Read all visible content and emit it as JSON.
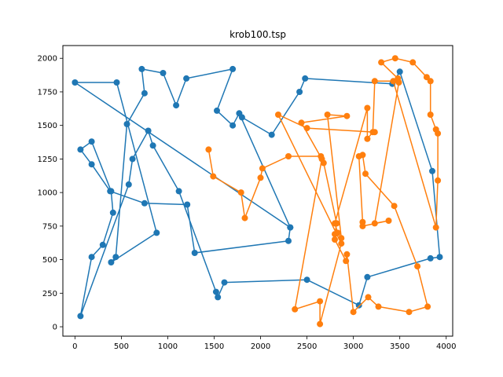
{
  "chart_data": {
    "type": "line",
    "title": "krob100.tsp",
    "xlabel": "",
    "ylabel": "",
    "xlim": [
      -130,
      4070
    ],
    "ylim": [
      -70,
      2095
    ],
    "grid": false,
    "x_ticks": [
      0,
      500,
      1000,
      1500,
      2000,
      2500,
      3000,
      3500,
      4000
    ],
    "y_ticks": [
      0,
      250,
      500,
      750,
      1000,
      1250,
      1500,
      1750,
      2000
    ],
    "x_tick_labels": [
      "0",
      "500",
      "1000",
      "1500",
      "2000",
      "2500",
      "3000",
      "3500",
      "4000"
    ],
    "y_tick_labels": [
      "0",
      "250",
      "500",
      "750",
      "1000",
      "1250",
      "1500",
      "1750",
      "2000"
    ],
    "series": [
      {
        "color": "#1f77b4",
        "points": [
          [
            2320,
            740
          ],
          [
            1770,
            1590
          ],
          [
            1700,
            1500
          ],
          [
            1530,
            1610
          ],
          [
            1700,
            1920
          ],
          [
            1200,
            1850
          ],
          [
            1090,
            1650
          ],
          [
            950,
            1890
          ],
          [
            720,
            1920
          ],
          [
            750,
            1740
          ],
          [
            560,
            1510
          ],
          [
            440,
            520
          ],
          [
            390,
            480
          ],
          [
            880,
            700
          ],
          [
            450,
            1820
          ],
          [
            0,
            1820
          ],
          [
            2320,
            740
          ],
          [
            2300,
            640
          ],
          [
            1290,
            550
          ],
          [
            1210,
            910
          ],
          [
            750,
            920
          ],
          [
            380,
            1010
          ],
          [
            180,
            1210
          ],
          [
            60,
            1320
          ],
          [
            180,
            1380
          ],
          [
            390,
            1010
          ],
          [
            410,
            850
          ],
          [
            300,
            610
          ],
          [
            180,
            520
          ],
          [
            60,
            80
          ],
          [
            580,
            1060
          ],
          [
            620,
            1250
          ],
          [
            790,
            1460
          ],
          [
            840,
            1350
          ],
          [
            1120,
            1010
          ],
          [
            1520,
            260
          ],
          [
            1540,
            220
          ],
          [
            1610,
            330
          ],
          [
            2500,
            350
          ],
          [
            3060,
            160
          ],
          [
            3150,
            370
          ],
          [
            3830,
            510
          ],
          [
            3930,
            520
          ],
          [
            3850,
            1160
          ],
          [
            3500,
            1900
          ],
          [
            3420,
            1810
          ],
          [
            2480,
            1850
          ],
          [
            2420,
            1750
          ],
          [
            2120,
            1430
          ],
          [
            1800,
            1560
          ]
        ]
      },
      {
        "color": "#ff7f0e",
        "points": [
          [
            1440,
            1320
          ],
          [
            1490,
            1120
          ],
          [
            1790,
            1000
          ],
          [
            1830,
            810
          ],
          [
            2000,
            1110
          ],
          [
            2020,
            1180
          ],
          [
            2300,
            1270
          ],
          [
            2650,
            1270
          ],
          [
            2680,
            1220
          ],
          [
            2820,
            770
          ],
          [
            2800,
            690
          ],
          [
            2800,
            650
          ],
          [
            2920,
            490
          ],
          [
            2930,
            540
          ],
          [
            3000,
            110
          ],
          [
            3160,
            220
          ],
          [
            3270,
            150
          ],
          [
            3600,
            110
          ],
          [
            3800,
            150
          ],
          [
            3690,
            450
          ],
          [
            3440,
            900
          ],
          [
            3130,
            1140
          ],
          [
            3100,
            1280
          ],
          [
            3060,
            1270
          ],
          [
            3100,
            780
          ],
          [
            3100,
            750
          ],
          [
            3380,
            790
          ],
          [
            3230,
            770
          ],
          [
            3490,
            1820
          ],
          [
            3480,
            1850
          ],
          [
            3300,
            1970
          ],
          [
            3450,
            2000
          ],
          [
            3640,
            1970
          ],
          [
            3790,
            1860
          ],
          [
            3830,
            1830
          ],
          [
            3830,
            1580
          ],
          [
            3890,
            1470
          ],
          [
            3910,
            1440
          ],
          [
            3910,
            1090
          ],
          [
            3890,
            740
          ],
          [
            3430,
            1830
          ],
          [
            3230,
            1830
          ],
          [
            3210,
            1450
          ],
          [
            3150,
            1400
          ],
          [
            3150,
            1630
          ],
          [
            2800,
            770
          ],
          [
            2830,
            700
          ],
          [
            2870,
            660
          ],
          [
            2720,
            1580
          ],
          [
            2930,
            1570
          ],
          [
            2440,
            1520
          ],
          [
            2660,
            1250
          ],
          [
            2370,
            130
          ],
          [
            2640,
            190
          ],
          [
            2640,
            20
          ],
          [
            2870,
            620
          ],
          [
            2190,
            1580
          ],
          [
            2500,
            1480
          ],
          [
            3230,
            1450
          ]
        ]
      }
    ]
  }
}
